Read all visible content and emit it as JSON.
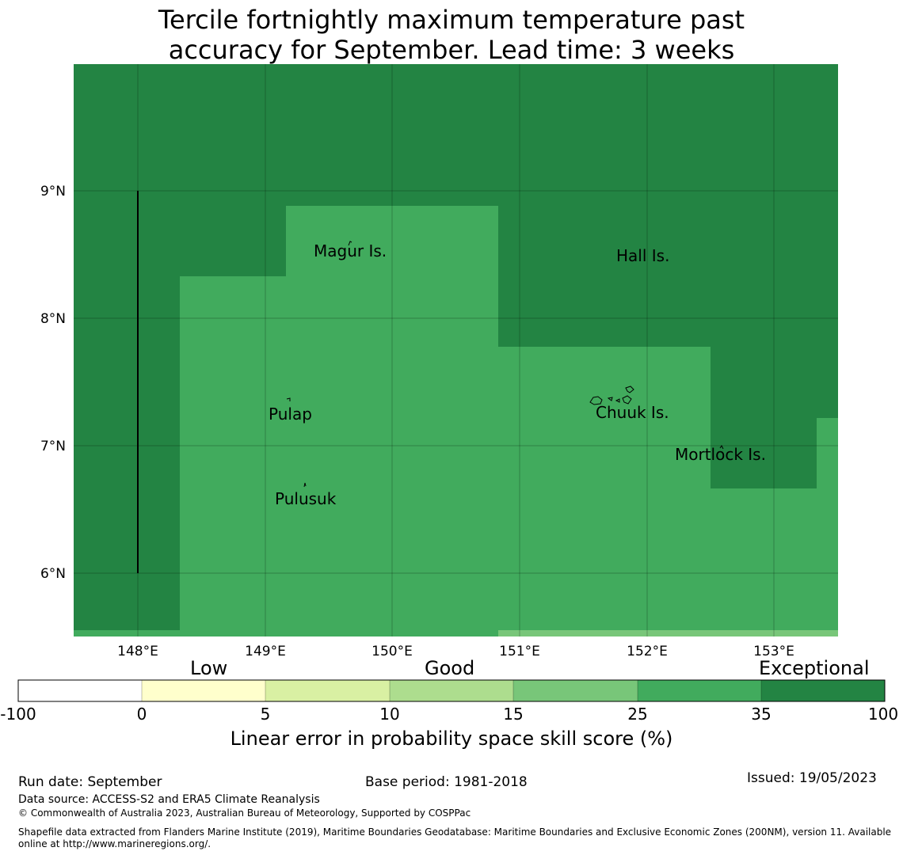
{
  "title_line1": "Tercile fortnightly maximum temperature past",
  "title_line2": "accuracy for September. Lead time: 3 weeks",
  "map": {
    "lon_labels": [
      "148°E",
      "149°E",
      "150°E",
      "151°E",
      "152°E",
      "153°E"
    ],
    "lat_labels": [
      "9°N",
      "8°N",
      "7°N",
      "6°N"
    ],
    "places": [
      "Magur Is.",
      "Hall Is.",
      "Pulap",
      "Chuuk Is.",
      "Mortlock Is.",
      "Pulusuk"
    ],
    "colors": {
      "exceptional": "#238443",
      "very_good": "#41ab5d",
      "good": "#78c679"
    }
  },
  "colorbar": {
    "categories": [
      "Low",
      "Good",
      "Exceptional"
    ],
    "ticks": [
      "-100",
      "0",
      "5",
      "10",
      "15",
      "25",
      "35",
      "100"
    ],
    "colors": [
      "#ffffff",
      "#ffffcc",
      "#d9f0a3",
      "#addd8e",
      "#78c679",
      "#41ab5d",
      "#238443"
    ],
    "title": "Linear error in probability space skill score (%)"
  },
  "footer": {
    "run_date": "Run date: September",
    "base_period": "Base period: 1981-2018",
    "issued": "Issued: 19/05/2023",
    "data_source": "Data source: ACCESS-S2 and ERA5 Climate Reanalysis",
    "copyright": "© Commonwealth of Australia 2023, Australian Bureau of Meteorology, Supported by COSPPac",
    "shapefile_line1": "Shapefile data extracted from Flanders Marine Institute (2019), Maritime Boundaries Geodatabase: Maritime Boundaries and Exclusive Economic Zones (200NM), version 11. Available",
    "shapefile_line2": "online at http://www.marineregions.org/."
  }
}
